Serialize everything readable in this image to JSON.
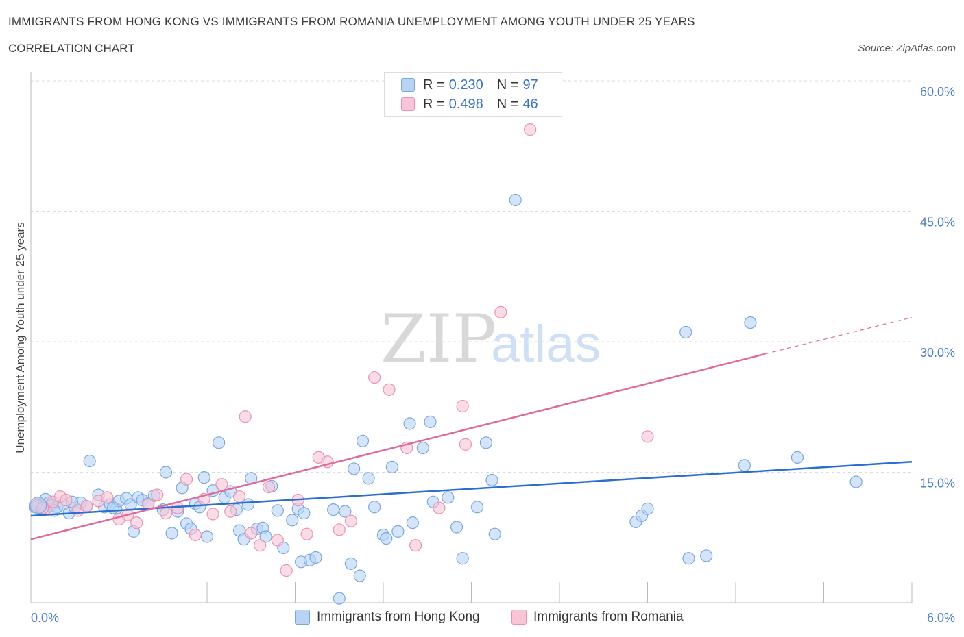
{
  "header": {
    "title": "IMMIGRANTS FROM HONG KONG VS IMMIGRANTS FROM ROMANIA UNEMPLOYMENT AMONG YOUTH UNDER 25 YEARS",
    "subtitle": "CORRELATION CHART",
    "source": "Source: ZipAtlas.com"
  },
  "legend": {
    "rows": [
      {
        "r_label": "R = ",
        "r_value": "0.230",
        "n_label": "N = ",
        "n_value": "97"
      },
      {
        "r_label": "R = ",
        "r_value": "0.498",
        "n_label": "N = ",
        "n_value": "46"
      }
    ]
  },
  "watermark": {
    "zip": "ZIP",
    "atlas": "atlas"
  },
  "colors": {
    "hk_fill": "#b9d3f5",
    "hk_stroke": "#7aa6e0",
    "hk_line": "#2a6fd0",
    "ro_fill": "#f7c5d6",
    "ro_stroke": "#eb92b2",
    "ro_line": "#e0699a",
    "grid": "#dddddd",
    "tick_text": "#4a7cc7"
  },
  "chart_data": {
    "type": "scatter",
    "title": "IMMIGRANTS FROM HONG KONG VS IMMIGRANTS FROM ROMANIA UNEMPLOYMENT AMONG YOUTH UNDER 25 YEARS",
    "xlabel": "",
    "ylabel": "Unemployment Among Youth under 25 years",
    "xlim": [
      0,
      6
    ],
    "ylim": [
      0,
      60
    ],
    "x_tick_labels": [
      "0.0%",
      "6.0%"
    ],
    "y_ticks": [
      15,
      30,
      45,
      60
    ],
    "y_tick_labels": [
      "15.0%",
      "30.0%",
      "45.0%",
      "60.0%"
    ],
    "grid": true,
    "legend_position": "top-center",
    "series": [
      {
        "name": "Immigrants from Hong Kong",
        "points": [
          [
            0.05,
            11.3
          ],
          [
            0.07,
            11.1
          ],
          [
            0.08,
            10.8
          ],
          [
            0.1,
            11.9
          ],
          [
            0.12,
            11.5
          ],
          [
            0.14,
            11.2
          ],
          [
            0.18,
            11.0
          ],
          [
            0.22,
            11.3
          ],
          [
            0.26,
            10.3
          ],
          [
            0.3,
            10.9
          ],
          [
            0.34,
            11.5
          ],
          [
            0.38,
            11.1
          ],
          [
            0.4,
            16.3
          ],
          [
            0.46,
            12.4
          ],
          [
            0.5,
            11.0
          ],
          [
            0.54,
            11.3
          ],
          [
            0.58,
            10.8
          ],
          [
            0.6,
            11.7
          ],
          [
            0.65,
            12.0
          ],
          [
            0.68,
            11.3
          ],
          [
            0.7,
            8.2
          ],
          [
            0.73,
            12.1
          ],
          [
            0.76,
            11.8
          ],
          [
            0.8,
            11.4
          ],
          [
            0.84,
            12.3
          ],
          [
            0.9,
            10.7
          ],
          [
            0.92,
            15.0
          ],
          [
            0.96,
            8.0
          ],
          [
            1.0,
            10.5
          ],
          [
            1.03,
            13.2
          ],
          [
            1.06,
            9.1
          ],
          [
            1.09,
            8.5
          ],
          [
            1.12,
            11.4
          ],
          [
            1.15,
            11.0
          ],
          [
            1.18,
            14.4
          ],
          [
            1.2,
            7.6
          ],
          [
            1.24,
            12.9
          ],
          [
            1.28,
            18.4
          ],
          [
            1.32,
            12.1
          ],
          [
            1.36,
            12.8
          ],
          [
            1.4,
            10.7
          ],
          [
            1.42,
            8.3
          ],
          [
            1.45,
            7.3
          ],
          [
            1.48,
            11.3
          ],
          [
            1.5,
            14.3
          ],
          [
            1.54,
            8.5
          ],
          [
            1.58,
            8.6
          ],
          [
            1.6,
            7.6
          ],
          [
            1.64,
            13.4
          ],
          [
            1.68,
            10.6
          ],
          [
            1.72,
            6.3
          ],
          [
            1.78,
            9.5
          ],
          [
            1.82,
            10.8
          ],
          [
            1.84,
            4.7
          ],
          [
            1.9,
            4.9
          ],
          [
            1.94,
            5.2
          ],
          [
            2.06,
            10.7
          ],
          [
            2.1,
            0.5
          ],
          [
            2.14,
            10.5
          ],
          [
            2.18,
            4.5
          ],
          [
            2.2,
            15.4
          ],
          [
            2.24,
            3.1
          ],
          [
            2.26,
            18.6
          ],
          [
            2.3,
            14.3
          ],
          [
            2.34,
            11.0
          ],
          [
            2.4,
            7.8
          ],
          [
            2.42,
            7.4
          ],
          [
            2.46,
            15.6
          ],
          [
            2.5,
            8.2
          ],
          [
            2.58,
            20.6
          ],
          [
            2.6,
            9.2
          ],
          [
            2.67,
            17.8
          ],
          [
            2.72,
            20.8
          ],
          [
            2.74,
            11.6
          ],
          [
            2.84,
            12.1
          ],
          [
            2.9,
            8.7
          ],
          [
            2.94,
            5.1
          ],
          [
            3.04,
            11.0
          ],
          [
            3.1,
            18.4
          ],
          [
            3.14,
            14.1
          ],
          [
            3.16,
            7.9
          ],
          [
            3.3,
            46.3
          ],
          [
            4.12,
            9.3
          ],
          [
            4.16,
            10.0
          ],
          [
            4.2,
            10.8
          ],
          [
            4.46,
            31.1
          ],
          [
            4.48,
            5.1
          ],
          [
            4.6,
            5.4
          ],
          [
            4.86,
            15.8
          ],
          [
            4.9,
            32.2
          ],
          [
            5.22,
            16.7
          ],
          [
            5.62,
            13.9
          ],
          [
            0.03,
            11.0
          ],
          [
            0.16,
            10.6
          ],
          [
            0.28,
            11.6
          ],
          [
            0.56,
            10.9
          ],
          [
            1.86,
            10.3
          ]
        ],
        "trend": {
          "x": [
            0,
            6
          ],
          "y": [
            10.0,
            16.2
          ]
        }
      },
      {
        "name": "Immigrants from Romania",
        "points": [
          [
            0.04,
            11.2
          ],
          [
            0.1,
            10.8
          ],
          [
            0.15,
            11.6
          ],
          [
            0.2,
            12.2
          ],
          [
            0.24,
            11.8
          ],
          [
            0.32,
            10.6
          ],
          [
            0.38,
            11.1
          ],
          [
            0.46,
            11.7
          ],
          [
            0.52,
            12.1
          ],
          [
            0.6,
            9.6
          ],
          [
            0.66,
            10.1
          ],
          [
            0.72,
            9.2
          ],
          [
            0.8,
            11.3
          ],
          [
            0.86,
            12.4
          ],
          [
            0.92,
            10.3
          ],
          [
            1.0,
            10.9
          ],
          [
            1.06,
            14.2
          ],
          [
            1.12,
            7.8
          ],
          [
            1.18,
            11.9
          ],
          [
            1.24,
            10.2
          ],
          [
            1.3,
            13.6
          ],
          [
            1.36,
            10.5
          ],
          [
            1.42,
            12.2
          ],
          [
            1.46,
            21.4
          ],
          [
            1.5,
            8.0
          ],
          [
            1.56,
            6.6
          ],
          [
            1.62,
            13.3
          ],
          [
            1.68,
            7.2
          ],
          [
            1.74,
            3.7
          ],
          [
            1.82,
            11.8
          ],
          [
            1.88,
            7.9
          ],
          [
            1.96,
            16.7
          ],
          [
            2.02,
            16.2
          ],
          [
            2.1,
            8.4
          ],
          [
            2.18,
            9.4
          ],
          [
            2.34,
            25.9
          ],
          [
            2.44,
            24.5
          ],
          [
            2.56,
            17.8
          ],
          [
            2.62,
            6.6
          ],
          [
            2.78,
            10.9
          ],
          [
            2.94,
            22.6
          ],
          [
            2.96,
            18.2
          ],
          [
            3.2,
            33.4
          ],
          [
            3.4,
            54.4
          ],
          [
            4.2,
            19.1
          ],
          [
            0.08,
            10.9
          ]
        ],
        "trend": {
          "x": [
            0,
            5.0
          ],
          "y": [
            7.3,
            28.6
          ]
        },
        "trend_extension": {
          "x": [
            5.0,
            6.0
          ],
          "y": [
            28.6,
            32.8
          ]
        }
      }
    ]
  }
}
